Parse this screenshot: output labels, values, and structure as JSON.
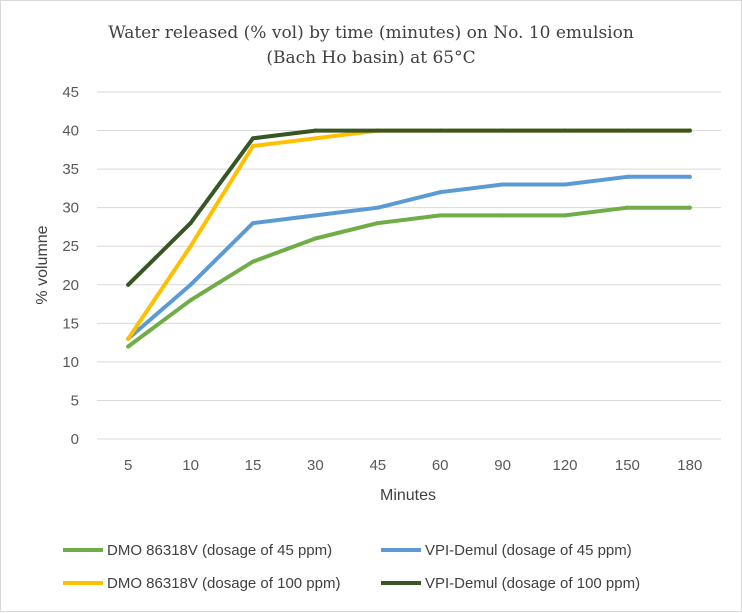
{
  "chart_data": {
    "type": "line",
    "title_line1": "Water released (% vol) by time (minutes) on No. 10 emulsion",
    "title_line2": "(Bach Ho basin) at 65°C",
    "xlabel": "Minutes",
    "ylabel": "% volumne",
    "categories": [
      "5",
      "10",
      "15",
      "30",
      "45",
      "60",
      "90",
      "120",
      "150",
      "180"
    ],
    "ylim": [
      0,
      45
    ],
    "yticks": [
      0,
      5,
      10,
      15,
      20,
      25,
      30,
      35,
      40,
      45
    ],
    "grid": true,
    "legend_position": "bottom",
    "series": [
      {
        "name": "DMO 86318V (dosage of 45 ppm)",
        "color": "#70ad47",
        "values": [
          12,
          18,
          23,
          26,
          28,
          29,
          29,
          29,
          30,
          30
        ]
      },
      {
        "name": "VPI-Demul (dosage of 45 ppm)",
        "color": "#5b9bd5",
        "values": [
          13,
          20,
          28,
          29,
          30,
          32,
          33,
          33,
          34,
          34
        ]
      },
      {
        "name": "DMO 86318V (dosage of 100 ppm)",
        "color": "#ffc000",
        "values": [
          13,
          25,
          38,
          39,
          40,
          40,
          40,
          40,
          40,
          40
        ]
      },
      {
        "name": "VPI-Demul (dosage of 100 ppm)",
        "color": "#375623",
        "values": [
          20,
          28,
          39,
          40,
          40,
          40,
          40,
          40,
          40,
          40
        ]
      }
    ]
  }
}
